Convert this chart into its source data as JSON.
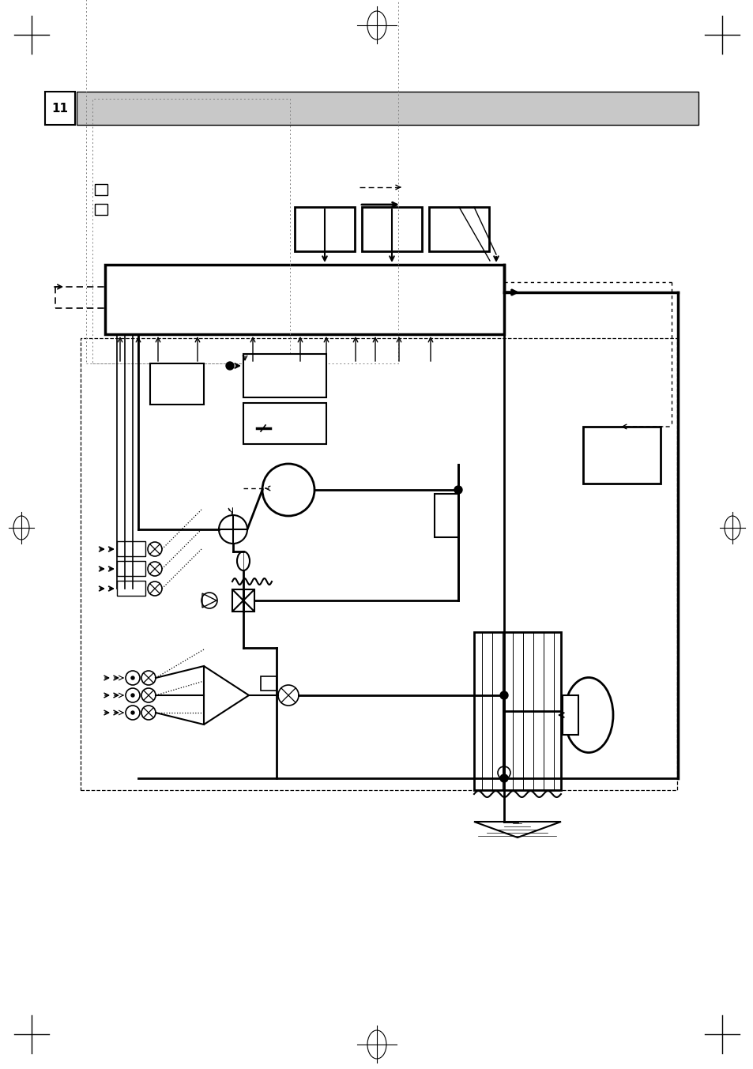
{
  "title_box_color": "#c8c8c8",
  "title_num": "11",
  "background": "#ffffff",
  "fig_width": 9.54,
  "fig_height": 13.53
}
